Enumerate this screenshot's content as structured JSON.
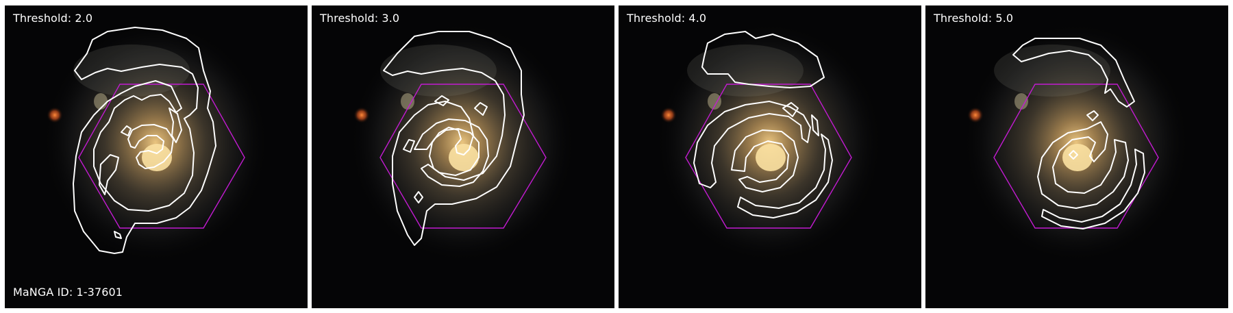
{
  "figure": {
    "galaxy_id_label": "MaNGA ID: 1-37601",
    "colors": {
      "background": "#050506",
      "contour": "#ffffff",
      "ifu_hexagon": "#c21bd1",
      "galaxy_core": "#f3c67a",
      "galaxy_disk": "#8c7a5a",
      "companion_star": "#e0602a"
    },
    "panels": [
      {
        "label": "Threshold: 2.0",
        "threshold": 2.0
      },
      {
        "label": "Threshold: 3.0",
        "threshold": 3.0
      },
      {
        "label": "Threshold: 4.0",
        "threshold": 4.0
      },
      {
        "label": "Threshold: 5.0",
        "threshold": 5.0
      }
    ]
  }
}
